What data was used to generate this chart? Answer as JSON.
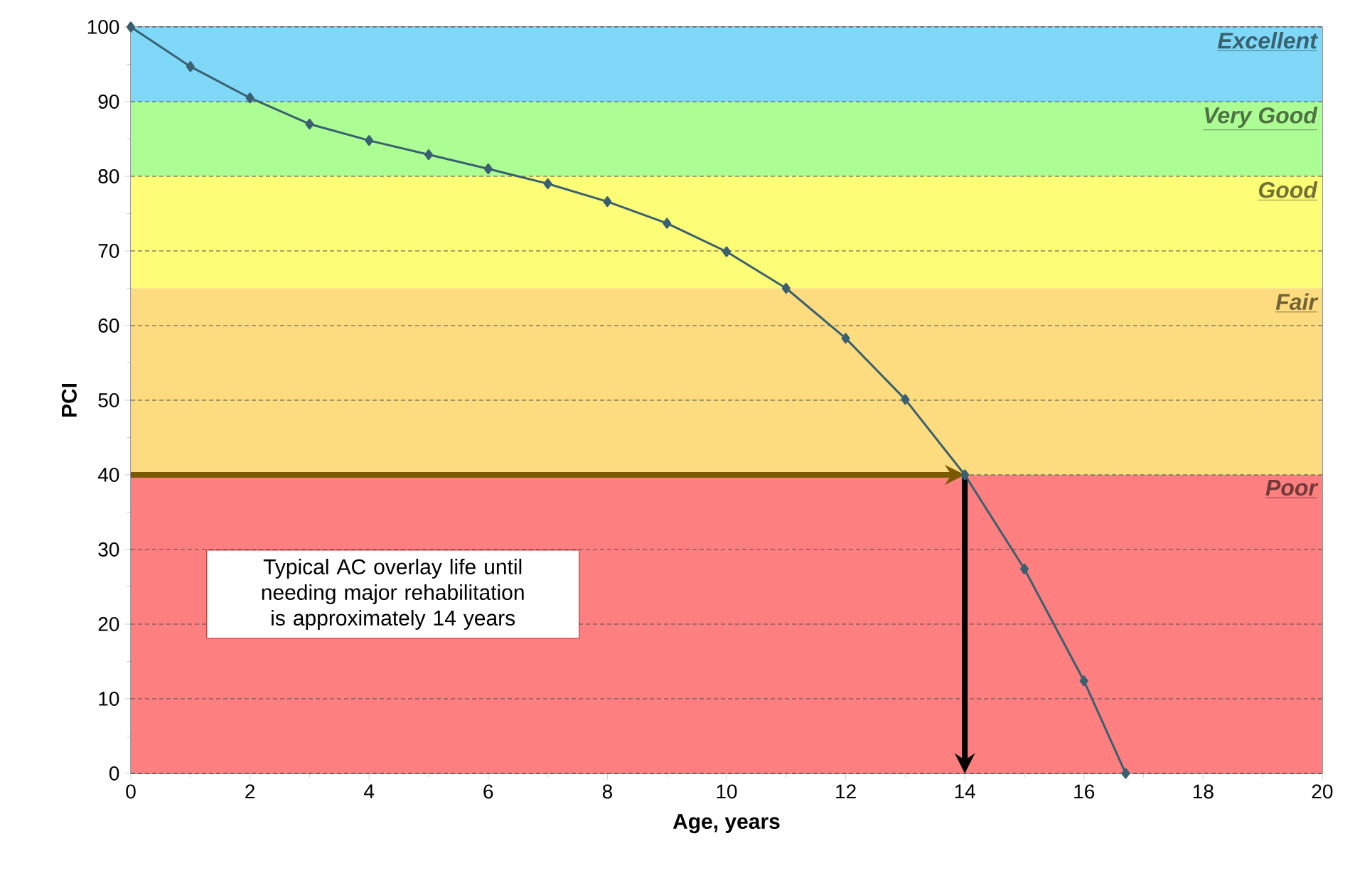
{
  "chart_data": {
    "type": "line",
    "xlabel": "Age, years",
    "ylabel": "PCI",
    "x": [
      0,
      1,
      2,
      3,
      4,
      5,
      6,
      7,
      8,
      9,
      10,
      11,
      12,
      13,
      14,
      15,
      16,
      16.7
    ],
    "series": [
      {
        "color": "#3a6070",
        "values": [
          100,
          94.7,
          90.5,
          87.0,
          84.8,
          82.9,
          81.0,
          79.0,
          76.6,
          73.7,
          69.9,
          65.0,
          58.3,
          50.1,
          40,
          27.4,
          12.4,
          0
        ]
      }
    ],
    "marker": "diamond",
    "line_style": "solid",
    "xlim": [
      0,
      20
    ],
    "xticks": [
      0,
      2,
      4,
      6,
      8,
      10,
      12,
      14,
      16,
      18,
      20
    ],
    "ylim": [
      0,
      100
    ],
    "yticks": [
      0,
      10,
      20,
      30,
      40,
      50,
      60,
      70,
      80,
      90,
      100
    ],
    "grid": "y",
    "bands": [
      {
        "axis": "y",
        "from": 90,
        "to": 100,
        "label": "Excellent",
        "color": "#7fd8f8"
      },
      {
        "axis": "y",
        "from": 80,
        "to": 90,
        "label": "Very Good",
        "color": "#adfd95"
      },
      {
        "axis": "y",
        "from": 65,
        "to": 80,
        "label": "Good",
        "color": "#fdfd78"
      },
      {
        "axis": "y",
        "from": 40,
        "to": 65,
        "label": "Fair",
        "color": "#fcdc7e"
      },
      {
        "axis": "y",
        "from": 0,
        "to": 40,
        "label": "Poor",
        "color": "#fd7f7f"
      }
    ],
    "ref_lines": [
      {
        "axis": "y",
        "value": 40,
        "color": "#7a5a00"
      },
      {
        "axis": "x",
        "value": 14,
        "color": "#000000"
      }
    ],
    "annotations": [
      "Typical AC overlay life until needing major rehabilitation is approximately 14 years"
    ]
  }
}
